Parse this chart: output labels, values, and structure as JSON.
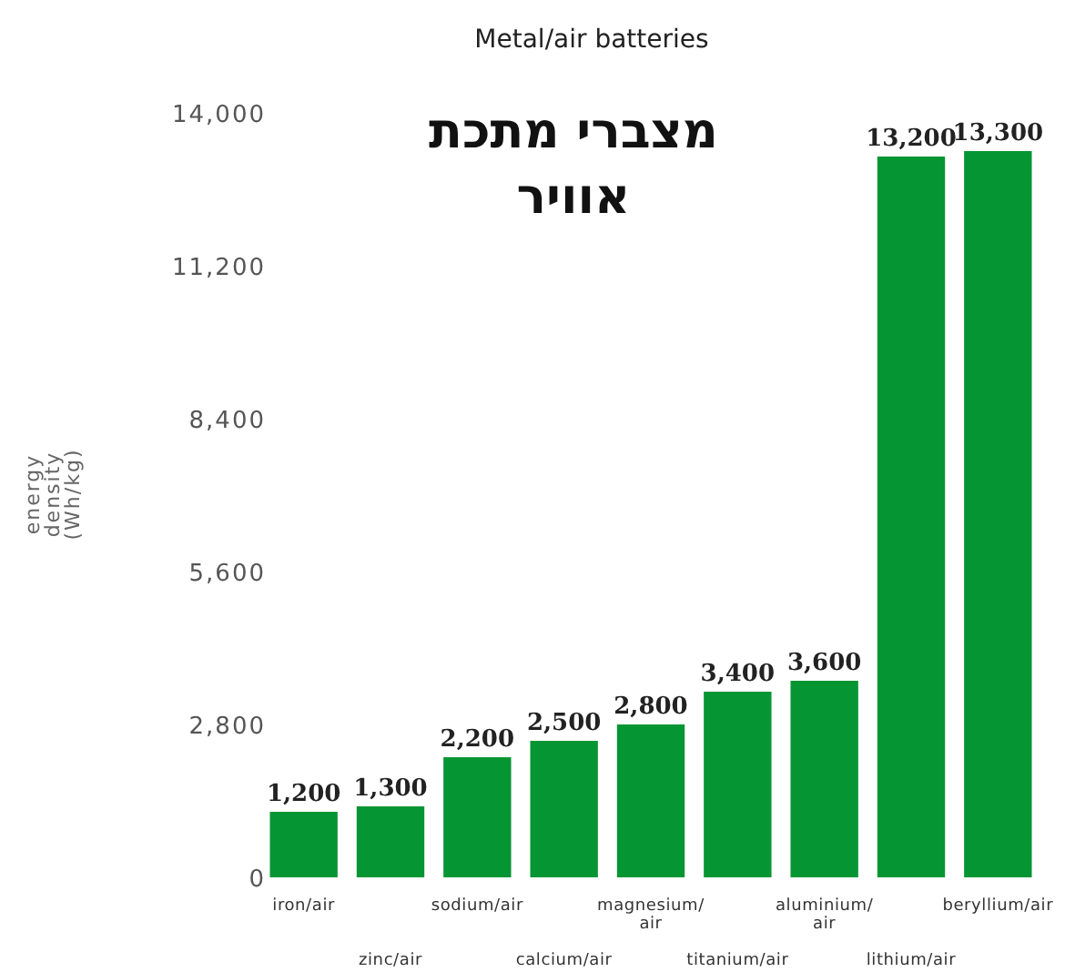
{
  "chart_data": {
    "type": "bar",
    "title": "Metal/air batteries",
    "ylabel": "energy density (Wh/kg)",
    "annotations": [
      "מצברי מתכת אוויר"
    ],
    "categories": [
      "iron/air",
      "zinc/air",
      "sodium/air",
      "calcium/air",
      "magnesium/air",
      "titanium/air",
      "aluminium/air",
      "lithium/air",
      "beryllium/air"
    ],
    "values": [
      1200,
      1300,
      2200,
      2500,
      2800,
      3400,
      3600,
      13200,
      13300
    ],
    "color": "#069533",
    "value_labels": [
      "1,200",
      "1,300",
      "2,200",
      "2,500",
      "2,800",
      "3,400",
      "3,600",
      "13,200",
      "13,300"
    ],
    "ylim": [
      0,
      14000
    ],
    "yticks": [
      {
        "value": 0,
        "label": "0"
      },
      {
        "value": 2800,
        "label": "2,800"
      },
      {
        "value": 5600,
        "label": "5,600"
      },
      {
        "value": 8400,
        "label": "8,400"
      },
      {
        "value": 11200,
        "label": "11,200"
      },
      {
        "value": 14000,
        "label": "14,000"
      }
    ],
    "grid": false
  }
}
